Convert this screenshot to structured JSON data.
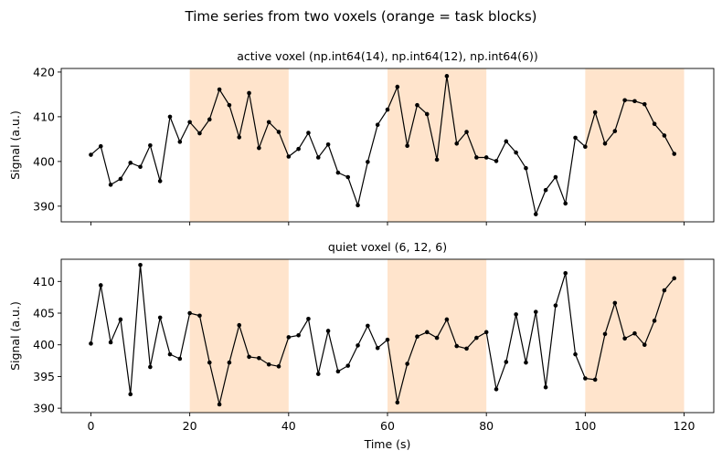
{
  "figure": {
    "title": "Time series from two voxels (orange = task blocks)"
  },
  "colors": {
    "task_block": "#ffe4cc",
    "line": "#000000",
    "background": "#ffffff"
  },
  "chart_data": [
    {
      "type": "line",
      "title": "active voxel (np.int64(14), np.int64(12), np.int64(6))",
      "xlabel": "",
      "ylabel": "Signal (a.u.)",
      "xlim": [
        -6,
        126
      ],
      "ylim": [
        386.5,
        420.8
      ],
      "yticks": [
        390,
        400,
        410,
        420
      ],
      "xticks": [
        0,
        20,
        40,
        60,
        80,
        100,
        120
      ],
      "show_xtick_labels": false,
      "task_blocks": [
        [
          20,
          40
        ],
        [
          60,
          80
        ],
        [
          100,
          120
        ]
      ],
      "grid": false,
      "series": [
        {
          "x": [
            0,
            2,
            4,
            6,
            8,
            10,
            12,
            14,
            16,
            18,
            20,
            22,
            24,
            26,
            28,
            30,
            32,
            34,
            36,
            38,
            40,
            42,
            44,
            46,
            48,
            50,
            52,
            54,
            56,
            58,
            60,
            62,
            64,
            66,
            68,
            70,
            72,
            74,
            76,
            78,
            80,
            82,
            84,
            86,
            88,
            90,
            92,
            94,
            96,
            98,
            100,
            102,
            104,
            106,
            108,
            110,
            112,
            114,
            116,
            118
          ],
          "values": [
            401.5,
            403.4,
            394.8,
            396.1,
            399.7,
            398.8,
            403.6,
            395.6,
            410.0,
            404.4,
            408.8,
            406.3,
            409.4,
            416.1,
            412.6,
            405.4,
            415.3,
            403.0,
            408.8,
            406.6,
            401.1,
            402.8,
            406.4,
            400.9,
            403.8,
            397.5,
            396.5,
            390.2,
            399.9,
            408.2,
            411.6,
            416.7,
            403.5,
            412.6,
            410.6,
            400.4,
            419.1,
            404.0,
            406.6,
            400.9,
            400.9,
            400.1,
            404.5,
            402.0,
            398.5,
            388.2,
            393.6,
            396.5,
            390.6,
            405.3,
            403.3,
            411.0,
            404.0,
            406.8,
            413.7,
            413.5,
            412.8,
            408.4,
            405.8,
            401.7
          ]
        }
      ]
    },
    {
      "type": "line",
      "title": "quiet voxel (6, 12, 6)",
      "xlabel": "Time (s)",
      "ylabel": "Signal (a.u.)",
      "xlim": [
        -6,
        126
      ],
      "ylim": [
        389.3,
        413.5
      ],
      "yticks": [
        390,
        395,
        400,
        405,
        410
      ],
      "xticks": [
        0,
        20,
        40,
        60,
        80,
        100,
        120
      ],
      "show_xtick_labels": true,
      "task_blocks": [
        [
          20,
          40
        ],
        [
          60,
          80
        ],
        [
          100,
          120
        ]
      ],
      "grid": false,
      "series": [
        {
          "x": [
            0,
            2,
            4,
            6,
            8,
            10,
            12,
            14,
            16,
            18,
            20,
            22,
            24,
            26,
            28,
            30,
            32,
            34,
            36,
            38,
            40,
            42,
            44,
            46,
            48,
            50,
            52,
            54,
            56,
            58,
            60,
            62,
            64,
            66,
            68,
            70,
            72,
            74,
            76,
            78,
            80,
            82,
            84,
            86,
            88,
            90,
            92,
            94,
            96,
            98,
            100,
            102,
            104,
            106,
            108,
            110,
            112,
            114,
            116,
            118
          ],
          "values": [
            400.2,
            409.4,
            400.4,
            404.0,
            392.2,
            412.6,
            396.5,
            404.3,
            398.5,
            397.8,
            405.0,
            404.6,
            397.2,
            390.6,
            397.2,
            403.1,
            398.1,
            397.9,
            396.9,
            396.6,
            401.2,
            401.5,
            404.1,
            395.4,
            402.2,
            395.8,
            396.7,
            399.9,
            403.0,
            399.5,
            400.8,
            390.9,
            397.0,
            401.3,
            402.0,
            401.1,
            404.0,
            399.8,
            399.4,
            401.1,
            402.0,
            393.0,
            397.3,
            404.8,
            397.2,
            405.2,
            393.3,
            406.2,
            411.3,
            398.5,
            394.7,
            394.5,
            401.7,
            406.6,
            401.0,
            401.8,
            400.0,
            403.8,
            408.6,
            410.5
          ]
        }
      ]
    }
  ]
}
